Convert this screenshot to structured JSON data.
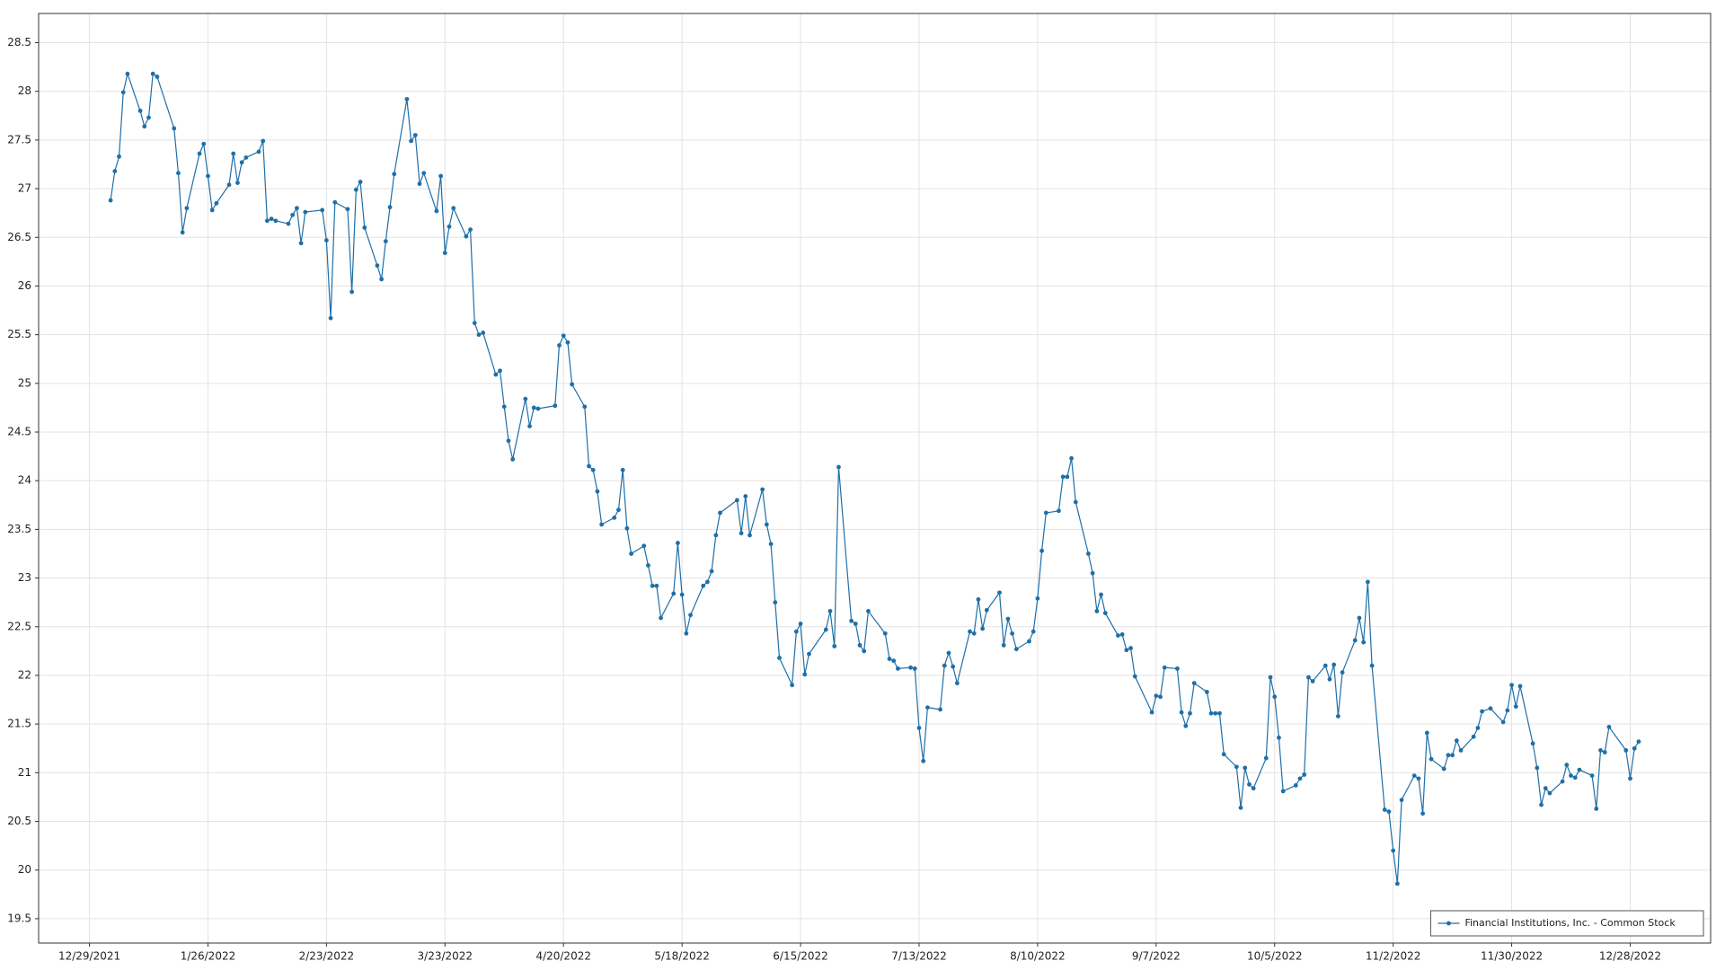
{
  "chart_data": {
    "type": "line",
    "x": [
      "1/3/2022",
      "1/4/2022",
      "1/5/2022",
      "1/6/2022",
      "1/7/2022",
      "1/10/2022",
      "1/11/2022",
      "1/12/2022",
      "1/13/2022",
      "1/14/2022",
      "1/18/2022",
      "1/19/2022",
      "1/20/2022",
      "1/21/2022",
      "1/24/2022",
      "1/25/2022",
      "1/26/2022",
      "1/27/2022",
      "1/28/2022",
      "1/31/2022",
      "2/1/2022",
      "2/2/2022",
      "2/3/2022",
      "2/4/2022",
      "2/7/2022",
      "2/8/2022",
      "2/9/2022",
      "2/10/2022",
      "2/11/2022",
      "2/14/2022",
      "2/15/2022",
      "2/16/2022",
      "2/17/2022",
      "2/18/2022",
      "2/22/2022",
      "2/23/2022",
      "2/24/2022",
      "2/25/2022",
      "2/28/2022",
      "3/1/2022",
      "3/2/2022",
      "3/3/2022",
      "3/4/2022",
      "3/7/2022",
      "3/8/2022",
      "3/9/2022",
      "3/10/2022",
      "3/11/2022",
      "3/14/2022",
      "3/15/2022",
      "3/16/2022",
      "3/17/2022",
      "3/18/2022",
      "3/21/2022",
      "3/22/2022",
      "3/23/2022",
      "3/24/2022",
      "3/25/2022",
      "3/28/2022",
      "3/29/2022",
      "3/30/2022",
      "3/31/2022",
      "4/1/2022",
      "4/4/2022",
      "4/5/2022",
      "4/6/2022",
      "4/7/2022",
      "4/8/2022",
      "4/11/2022",
      "4/12/2022",
      "4/13/2022",
      "4/14/2022",
      "4/18/2022",
      "4/19/2022",
      "4/20/2022",
      "4/21/2022",
      "4/22/2022",
      "4/25/2022",
      "4/26/2022",
      "4/27/2022",
      "4/28/2022",
      "4/29/2022",
      "5/2/2022",
      "5/3/2022",
      "5/4/2022",
      "5/5/2022",
      "5/6/2022",
      "5/9/2022",
      "5/10/2022",
      "5/11/2022",
      "5/12/2022",
      "5/13/2022",
      "5/16/2022",
      "5/17/2022",
      "5/18/2022",
      "5/19/2022",
      "5/20/2022",
      "5/23/2022",
      "5/24/2022",
      "5/25/2022",
      "5/26/2022",
      "5/27/2022",
      "5/31/2022",
      "6/1/2022",
      "6/2/2022",
      "6/3/2022",
      "6/6/2022",
      "6/7/2022",
      "6/8/2022",
      "6/9/2022",
      "6/10/2022",
      "6/13/2022",
      "6/14/2022",
      "6/15/2022",
      "6/16/2022",
      "6/17/2022",
      "6/21/2022",
      "6/22/2022",
      "6/23/2022",
      "6/24/2022",
      "6/27/2022",
      "6/28/2022",
      "6/29/2022",
      "6/30/2022",
      "7/1/2022",
      "7/5/2022",
      "7/6/2022",
      "7/7/2022",
      "7/8/2022",
      "7/11/2022",
      "7/12/2022",
      "7/13/2022",
      "7/14/2022",
      "7/15/2022",
      "7/18/2022",
      "7/19/2022",
      "7/20/2022",
      "7/21/2022",
      "7/22/2022",
      "7/25/2022",
      "7/26/2022",
      "7/27/2022",
      "7/28/2022",
      "7/29/2022",
      "8/1/2022",
      "8/2/2022",
      "8/3/2022",
      "8/4/2022",
      "8/5/2022",
      "8/8/2022",
      "8/9/2022",
      "8/10/2022",
      "8/11/2022",
      "8/12/2022",
      "8/15/2022",
      "8/16/2022",
      "8/17/2022",
      "8/18/2022",
      "8/19/2022",
      "8/22/2022",
      "8/23/2022",
      "8/24/2022",
      "8/25/2022",
      "8/26/2022",
      "8/29/2022",
      "8/30/2022",
      "8/31/2022",
      "9/1/2022",
      "9/2/2022",
      "9/6/2022",
      "9/7/2022",
      "9/8/2022",
      "9/9/2022",
      "9/12/2022",
      "9/13/2022",
      "9/14/2022",
      "9/15/2022",
      "9/16/2022",
      "9/19/2022",
      "9/20/2022",
      "9/21/2022",
      "9/22/2022",
      "9/23/2022",
      "9/26/2022",
      "9/27/2022",
      "9/28/2022",
      "9/29/2022",
      "9/30/2022",
      "10/3/2022",
      "10/4/2022",
      "10/5/2022",
      "10/6/2022",
      "10/7/2022",
      "10/10/2022",
      "10/11/2022",
      "10/12/2022",
      "10/13/2022",
      "10/14/2022",
      "10/17/2022",
      "10/18/2022",
      "10/19/2022",
      "10/20/2022",
      "10/21/2022",
      "10/24/2022",
      "10/25/2022",
      "10/26/2022",
      "10/27/2022",
      "10/28/2022",
      "10/31/2022",
      "11/1/2022",
      "11/2/2022",
      "11/3/2022",
      "11/4/2022",
      "11/7/2022",
      "11/8/2022",
      "11/9/2022",
      "11/10/2022",
      "11/11/2022",
      "11/14/2022",
      "11/15/2022",
      "11/16/2022",
      "11/17/2022",
      "11/18/2022",
      "11/21/2022",
      "11/22/2022",
      "11/23/2022",
      "11/25/2022",
      "11/28/2022",
      "11/29/2022",
      "11/30/2022",
      "12/1/2022",
      "12/2/2022",
      "12/5/2022",
      "12/6/2022",
      "12/7/2022",
      "12/8/2022",
      "12/9/2022",
      "12/12/2022",
      "12/13/2022",
      "12/14/2022",
      "12/15/2022",
      "12/16/2022",
      "12/19/2022",
      "12/20/2022",
      "12/21/2022",
      "12/22/2022",
      "12/23/2022",
      "12/27/2022",
      "12/28/2022",
      "12/29/2022",
      "12/30/2022"
    ],
    "series": [
      {
        "name": "Financial Institutions, Inc. - Common Stock",
        "color": "#1f6fa8",
        "values": [
          26.88,
          27.18,
          27.33,
          27.99,
          28.18,
          27.8,
          27.64,
          27.73,
          28.18,
          28.15,
          27.62,
          27.16,
          26.55,
          26.8,
          27.36,
          27.46,
          27.13,
          26.78,
          26.85,
          27.04,
          27.36,
          27.06,
          27.27,
          27.32,
          27.38,
          27.49,
          26.67,
          26.69,
          26.67,
          26.64,
          26.73,
          26.8,
          26.44,
          26.76,
          26.78,
          26.47,
          25.67,
          26.86,
          26.79,
          25.94,
          26.99,
          27.07,
          26.6,
          26.21,
          26.07,
          26.46,
          26.81,
          27.15,
          27.92,
          27.49,
          27.55,
          27.05,
          27.16,
          26.77,
          27.13,
          26.34,
          26.61,
          26.8,
          26.51,
          26.58,
          25.62,
          25.5,
          25.52,
          25.09,
          25.13,
          24.76,
          24.41,
          24.22,
          24.84,
          24.56,
          24.75,
          24.74,
          24.77,
          25.39,
          25.49,
          25.42,
          24.99,
          24.76,
          24.15,
          24.11,
          23.89,
          23.55,
          23.62,
          23.7,
          24.11,
          23.51,
          23.25,
          23.33,
          23.13,
          22.92,
          22.92,
          22.59,
          22.84,
          23.36,
          22.83,
          22.43,
          22.62,
          22.92,
          22.96,
          23.07,
          23.44,
          23.67,
          23.8,
          23.46,
          23.84,
          23.44,
          23.91,
          23.55,
          23.35,
          22.75,
          22.18,
          21.9,
          22.45,
          22.53,
          22.01,
          22.22,
          22.47,
          22.66,
          22.3,
          24.14,
          22.56,
          22.53,
          22.31,
          22.25,
          22.66,
          22.43,
          22.17,
          22.15,
          22.07,
          22.08,
          22.07,
          21.46,
          21.12,
          21.67,
          21.65,
          22.1,
          22.23,
          22.09,
          21.92,
          22.45,
          22.43,
          22.78,
          22.48,
          22.67,
          22.85,
          22.31,
          22.58,
          22.43,
          22.27,
          22.35,
          22.45,
          22.79,
          23.28,
          23.67,
          23.69,
          24.04,
          24.04,
          24.23,
          23.78,
          23.25,
          23.05,
          22.66,
          22.83,
          22.64,
          22.41,
          22.42,
          22.26,
          22.28,
          21.99,
          21.62,
          21.79,
          21.78,
          22.08,
          22.07,
          21.62,
          21.48,
          21.61,
          21.92,
          21.83,
          21.61,
          21.61,
          21.61,
          21.19,
          21.06,
          20.64,
          21.05,
          20.88,
          20.84,
          21.15,
          21.98,
          21.78,
          21.36,
          20.81,
          20.87,
          20.94,
          20.98,
          21.98,
          21.94,
          22.1,
          21.96,
          22.11,
          21.58,
          22.03,
          22.36,
          22.59,
          22.34,
          22.96,
          22.1,
          20.62,
          20.6,
          20.2,
          19.86,
          20.72,
          20.97,
          20.94,
          20.58,
          21.41,
          21.14,
          21.04,
          21.18,
          21.18,
          21.33,
          21.23,
          21.37,
          21.46,
          21.63,
          21.66,
          21.52,
          21.64,
          21.9,
          21.68,
          21.89,
          21.3,
          21.05,
          20.67,
          20.84,
          20.79,
          20.91,
          21.08,
          20.97,
          20.95,
          21.03,
          20.97,
          20.63,
          21.23,
          21.21,
          21.47,
          21.23,
          20.94,
          21.25,
          21.32
        ]
      }
    ],
    "xlim": [
      "12/17/2021",
      "1/16/2023"
    ],
    "xticks": [
      "12/29/2021",
      "1/26/2022",
      "2/23/2022",
      "3/23/2022",
      "4/20/2022",
      "5/18/2022",
      "6/15/2022",
      "7/13/2022",
      "8/10/2022",
      "9/7/2022",
      "10/5/2022",
      "11/2/2022",
      "11/30/2022",
      "12/28/2022"
    ],
    "ylim": [
      19.25,
      28.8
    ],
    "yticks": [
      19.5,
      20,
      20.5,
      21,
      21.5,
      22,
      22.5,
      23,
      23.5,
      24,
      24.5,
      25,
      25.5,
      26,
      26.5,
      27,
      27.5,
      28,
      28.5
    ],
    "grid": true,
    "legend": "lower right"
  }
}
